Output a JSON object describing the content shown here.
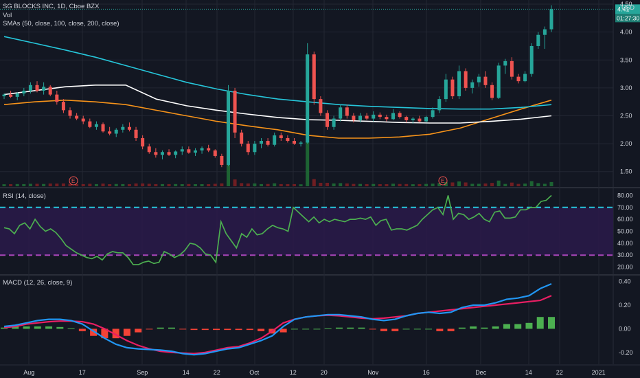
{
  "header": {
    "symbol_line": "SG BLOCKS INC, 1D, Cboe BZX",
    "vol_label": "Vol",
    "sma_label": "SMAs (50, close, 100, close, 200, close)",
    "currency": "USD"
  },
  "price_badges": {
    "last": "4.41",
    "countdown": "01:27:30",
    "top_tick": "4.50"
  },
  "chart_data": [
    {
      "type": "candlestick",
      "pane": "price",
      "title": "SG BLOCKS INC, 1D, Cboe BZX",
      "ylim": [
        1.25,
        4.55
      ],
      "y_ticks": [
        1.5,
        2.0,
        2.5,
        3.0,
        3.5,
        4.0,
        4.5
      ],
      "y_tick_labels": [
        "1.50",
        "2.00",
        "2.50",
        "3.00",
        "3.50",
        "4.00",
        "4.50"
      ],
      "x_tick_labels": [
        "Aug",
        "17",
        "Sep",
        "14",
        "22",
        "Oct",
        "12",
        "20",
        "Nov",
        "16",
        "Dec",
        "14",
        "22",
        "2021"
      ],
      "earnings_markers": [
        "E",
        "E"
      ],
      "series": [
        {
          "name": "SMA 50",
          "color": "#f7931a",
          "values": [
            2.7,
            2.75,
            2.78,
            2.75,
            2.7,
            2.6,
            2.5,
            2.4,
            2.32,
            2.25,
            2.15,
            2.1,
            2.1,
            2.12,
            2.17,
            2.28,
            2.45,
            2.62,
            2.78
          ]
        },
        {
          "name": "SMA 100",
          "color": "#ffffff",
          "values": [
            2.88,
            2.95,
            3.02,
            3.05,
            3.05,
            2.8,
            2.68,
            2.6,
            2.53,
            2.47,
            2.43,
            2.42,
            2.4,
            2.38,
            2.37,
            2.37,
            2.4,
            2.44,
            2.5
          ]
        },
        {
          "name": "SMA 200",
          "color": "#26c6da",
          "values": [
            3.92,
            3.8,
            3.68,
            3.55,
            3.4,
            3.25,
            3.1,
            2.98,
            2.88,
            2.8,
            2.75,
            2.7,
            2.67,
            2.65,
            2.63,
            2.62,
            2.62,
            2.65,
            2.7
          ]
        }
      ],
      "candles": [
        [
          2.85,
          2.9,
          2.8,
          2.88
        ],
        [
          2.88,
          2.95,
          2.82,
          2.84
        ],
        [
          2.84,
          2.92,
          2.78,
          2.9
        ],
        [
          2.9,
          3.0,
          2.85,
          2.95
        ],
        [
          2.95,
          3.1,
          2.9,
          3.05
        ],
        [
          3.05,
          3.12,
          2.92,
          2.95
        ],
        [
          2.95,
          3.1,
          2.88,
          3.02
        ],
        [
          3.02,
          3.05,
          2.85,
          2.88
        ],
        [
          2.88,
          2.95,
          2.7,
          2.75
        ],
        [
          2.75,
          2.8,
          2.55,
          2.6
        ],
        [
          2.6,
          2.65,
          2.45,
          2.5
        ],
        [
          2.5,
          2.55,
          2.42,
          2.45
        ],
        [
          2.45,
          2.5,
          2.35,
          2.4
        ],
        [
          2.4,
          2.45,
          2.28,
          2.3
        ],
        [
          2.3,
          2.4,
          2.25,
          2.35
        ],
        [
          2.35,
          2.38,
          2.2,
          2.22
        ],
        [
          2.22,
          2.3,
          2.15,
          2.18
        ],
        [
          2.18,
          2.28,
          2.12,
          2.25
        ],
        [
          2.25,
          2.35,
          2.2,
          2.3
        ],
        [
          2.3,
          2.38,
          2.22,
          2.25
        ],
        [
          2.25,
          2.3,
          2.05,
          2.1
        ],
        [
          2.1,
          2.15,
          1.9,
          1.95
        ],
        [
          1.95,
          2.0,
          1.82,
          1.85
        ],
        [
          1.85,
          1.92,
          1.75,
          1.8
        ],
        [
          1.8,
          1.88,
          1.72,
          1.85
        ],
        [
          1.85,
          1.9,
          1.78,
          1.8
        ],
        [
          1.8,
          1.88,
          1.74,
          1.86
        ],
        [
          1.86,
          1.95,
          1.8,
          1.9
        ],
        [
          1.9,
          1.95,
          1.82,
          1.84
        ],
        [
          1.84,
          1.92,
          1.78,
          1.88
        ],
        [
          1.88,
          1.95,
          1.82,
          1.92
        ],
        [
          1.92,
          1.98,
          1.85,
          1.88
        ],
        [
          1.88,
          1.9,
          1.75,
          1.78
        ],
        [
          1.78,
          1.82,
          1.58,
          1.62
        ],
        [
          1.62,
          3.05,
          1.6,
          2.95
        ],
        [
          2.95,
          3.0,
          2.1,
          2.2
        ],
        [
          2.2,
          2.25,
          1.95,
          2.0
        ],
        [
          2.0,
          2.05,
          1.8,
          1.85
        ],
        [
          1.85,
          2.05,
          1.8,
          2.0
        ],
        [
          2.0,
          2.1,
          1.92,
          2.05
        ],
        [
          2.05,
          2.1,
          1.95,
          1.98
        ],
        [
          1.98,
          2.2,
          1.95,
          2.15
        ],
        [
          2.15,
          2.2,
          2.05,
          2.1
        ],
        [
          2.1,
          2.15,
          2.02,
          2.05
        ],
        [
          2.05,
          2.1,
          1.98,
          2.0
        ],
        [
          2.0,
          2.05,
          1.95,
          2.02
        ],
        [
          2.02,
          3.8,
          2.0,
          3.6
        ],
        [
          3.6,
          3.65,
          2.7,
          2.8
        ],
        [
          2.8,
          2.85,
          2.5,
          2.55
        ],
        [
          2.55,
          2.6,
          2.25,
          2.3
        ],
        [
          2.3,
          2.5,
          2.25,
          2.45
        ],
        [
          2.45,
          2.7,
          2.4,
          2.65
        ],
        [
          2.65,
          2.7,
          2.45,
          2.5
        ],
        [
          2.5,
          2.55,
          2.38,
          2.42
        ],
        [
          2.42,
          2.55,
          2.38,
          2.5
        ],
        [
          2.5,
          2.55,
          2.42,
          2.45
        ],
        [
          2.45,
          2.58,
          2.4,
          2.52
        ],
        [
          2.52,
          2.56,
          2.44,
          2.48
        ],
        [
          2.48,
          2.52,
          2.4,
          2.44
        ],
        [
          2.44,
          2.62,
          2.42,
          2.55
        ],
        [
          2.55,
          2.58,
          2.45,
          2.48
        ],
        [
          2.48,
          2.5,
          2.38,
          2.42
        ],
        [
          2.42,
          2.48,
          2.36,
          2.45
        ],
        [
          2.45,
          2.5,
          2.38,
          2.4
        ],
        [
          2.4,
          2.5,
          2.38,
          2.48
        ],
        [
          2.48,
          2.65,
          2.45,
          2.6
        ],
        [
          2.6,
          2.85,
          2.55,
          2.8
        ],
        [
          2.8,
          3.25,
          2.75,
          3.15
        ],
        [
          3.15,
          3.2,
          2.8,
          2.85
        ],
        [
          2.85,
          3.4,
          2.8,
          3.3
        ],
        [
          3.3,
          3.35,
          2.95,
          3.0
        ],
        [
          3.0,
          3.15,
          2.9,
          3.1
        ],
        [
          3.1,
          3.25,
          3.02,
          3.2
        ],
        [
          3.2,
          3.3,
          3.0,
          3.05
        ],
        [
          3.05,
          3.1,
          2.78,
          2.82
        ],
        [
          2.82,
          3.45,
          2.8,
          3.4
        ],
        [
          3.4,
          3.52,
          3.25,
          3.48
        ],
        [
          3.48,
          3.55,
          3.15,
          3.2
        ],
        [
          3.2,
          3.25,
          3.08,
          3.12
        ],
        [
          3.12,
          3.3,
          3.1,
          3.25
        ],
        [
          3.25,
          3.8,
          3.2,
          3.75
        ],
        [
          3.75,
          4.0,
          3.7,
          3.95
        ],
        [
          3.95,
          4.1,
          3.7,
          4.05
        ],
        [
          4.05,
          4.48,
          4.0,
          4.41
        ]
      ]
    },
    {
      "type": "line",
      "pane": "rsi",
      "title": "RSI (14, close)",
      "ylim": [
        14,
        86
      ],
      "y_tick_labels": [
        "20.00",
        "30.00",
        "40.00",
        "50.00",
        "60.00",
        "70.00",
        "80.00"
      ],
      "y_ticks": [
        20,
        30,
        40,
        50,
        60,
        70,
        80
      ],
      "band": [
        30,
        70
      ],
      "series": [
        {
          "name": "RSI",
          "color": "#4caf50",
          "values": [
            53,
            52,
            48,
            55,
            57,
            52,
            60,
            54,
            50,
            52,
            49,
            44,
            38,
            35,
            32,
            30,
            28,
            27,
            29,
            26,
            31,
            33,
            32,
            32,
            28,
            22,
            22,
            24,
            25,
            23,
            24,
            33,
            31,
            28,
            30,
            34,
            40,
            39,
            36,
            31,
            30,
            24,
            58,
            48,
            42,
            36,
            48,
            45,
            52,
            47,
            48,
            52,
            55,
            53,
            52,
            50,
            70,
            66,
            62,
            58,
            62,
            57,
            60,
            58,
            60,
            59,
            58,
            60,
            60,
            61,
            60,
            62,
            55,
            59,
            60,
            51,
            52,
            52,
            51,
            53,
            55,
            60,
            64,
            68,
            70,
            64,
            80,
            60,
            65,
            64,
            60,
            62,
            65,
            60,
            58,
            66,
            67,
            61,
            61,
            62,
            68,
            68,
            70,
            70,
            75,
            76,
            80
          ]
        }
      ]
    },
    {
      "type": "bar+line",
      "pane": "macd",
      "title": "MACD (12, 26, close, 9)",
      "ylim": [
        -0.3,
        0.45
      ],
      "y_tick_labels": [
        "-0.20",
        "0.00",
        "0.20",
        "0.40"
      ],
      "y_ticks": [
        -0.2,
        0.0,
        0.2,
        0.4
      ],
      "series": [
        {
          "name": "MACD",
          "color": "#2196f3",
          "values": [
            0.02,
            0.03,
            0.05,
            0.07,
            0.08,
            0.08,
            0.07,
            0.04,
            -0.02,
            -0.08,
            -0.13,
            -0.16,
            -0.17,
            -0.175,
            -0.18,
            -0.19,
            -0.21,
            -0.22,
            -0.21,
            -0.19,
            -0.17,
            -0.16,
            -0.13,
            -0.1,
            -0.06,
            0.02,
            0.08,
            0.1,
            0.11,
            0.12,
            0.12,
            0.11,
            0.1,
            0.08,
            0.07,
            0.08,
            0.11,
            0.13,
            0.14,
            0.13,
            0.14,
            0.18,
            0.2,
            0.2,
            0.22,
            0.25,
            0.26,
            0.28,
            0.34,
            0.38
          ]
        },
        {
          "name": "Signal",
          "color": "#e91e63",
          "values": [
            0.01,
            0.02,
            0.04,
            0.05,
            0.06,
            0.065,
            0.065,
            0.06,
            0.04,
            0.0,
            -0.05,
            -0.1,
            -0.14,
            -0.17,
            -0.19,
            -0.2,
            -0.205,
            -0.21,
            -0.2,
            -0.18,
            -0.16,
            -0.15,
            -0.12,
            -0.08,
            -0.02,
            0.05,
            0.08,
            0.1,
            0.11,
            0.115,
            0.11,
            0.1,
            0.09,
            0.085,
            0.09,
            0.1,
            0.11,
            0.13,
            0.14,
            0.15,
            0.16,
            0.17,
            0.18,
            0.19,
            0.2,
            0.21,
            0.22,
            0.23,
            0.24,
            0.28
          ]
        },
        {
          "name": "Histogram",
          "color": "#4caf50",
          "values": [
            0.01,
            0.02,
            0.02,
            0.02,
            0.02,
            0.015,
            0.005,
            -0.02,
            -0.06,
            -0.08,
            -0.08,
            -0.06,
            -0.03,
            -0.005,
            0.01,
            0.01,
            -0.005,
            -0.01,
            -0.01,
            -0.01,
            -0.01,
            -0.01,
            -0.01,
            -0.02,
            -0.04,
            -0.03,
            0.0,
            0.0,
            0.0,
            0.005,
            0.01,
            0.01,
            0.01,
            -0.005,
            -0.02,
            -0.02,
            0.0,
            0.0,
            0.0,
            -0.02,
            -0.02,
            0.01,
            0.02,
            0.01,
            0.02,
            0.04,
            0.04,
            0.05,
            0.1,
            0.1
          ]
        }
      ]
    }
  ]
}
